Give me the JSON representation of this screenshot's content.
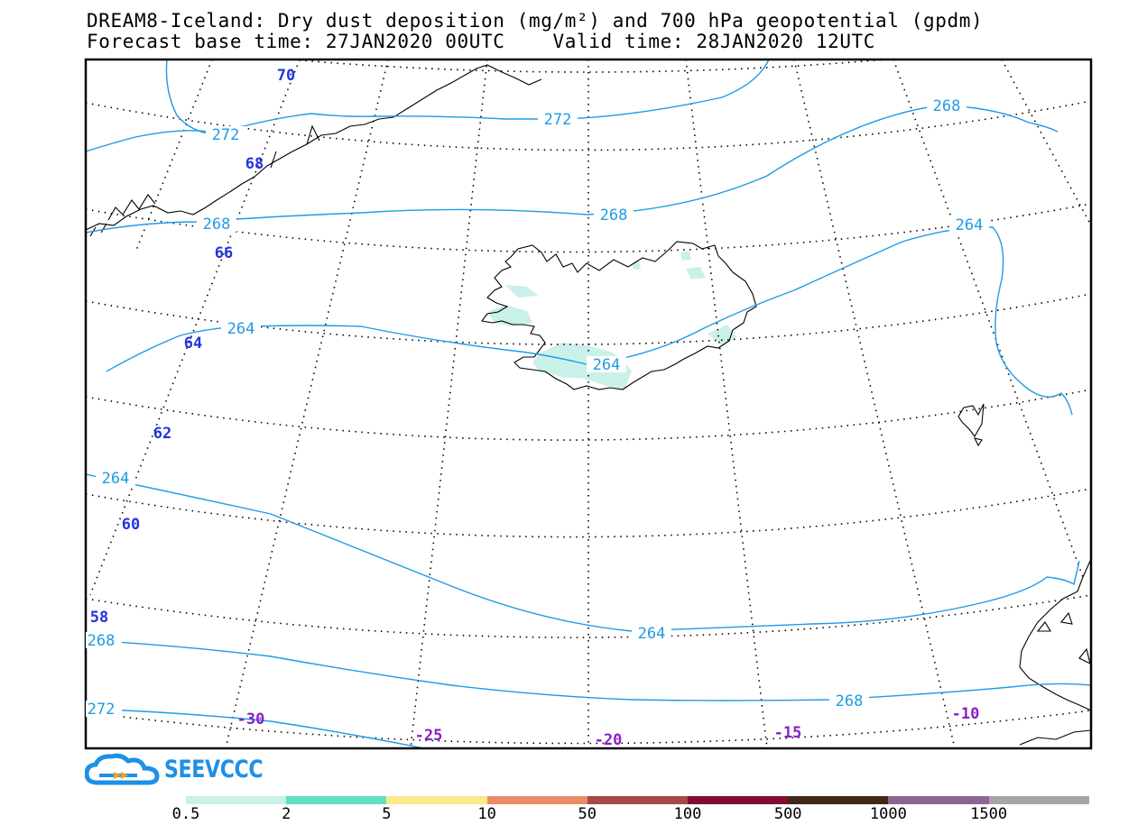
{
  "title": {
    "line1": "DREAM8-Iceland: Dry dust deposition (mg/m²) and 700 hPa geopotential (gpdm)",
    "line2": "Forecast base time: 27JAN2020 00UTC    Valid time: 28JAN2020 12UTC"
  },
  "logo": {
    "text": "SEEVCCC",
    "icon": "cloud-arrow-icon"
  },
  "colors": {
    "contour": "#1e9be6",
    "lat_label": "#2233dd",
    "lon_label": "#8a1ec8",
    "dust": "#c9f1ea"
  },
  "map": {
    "contour_labels": [
      {
        "id": "c272a",
        "text": "272"
      },
      {
        "id": "c272b",
        "text": "272"
      },
      {
        "id": "c268a",
        "text": "268"
      },
      {
        "id": "c268b",
        "text": "268"
      },
      {
        "id": "c268c",
        "text": "268"
      },
      {
        "id": "c264a",
        "text": "264"
      },
      {
        "id": "c264b",
        "text": "264"
      },
      {
        "id": "c264c",
        "text": "264"
      },
      {
        "id": "c264d",
        "text": "264"
      },
      {
        "id": "c264e",
        "text": "264"
      },
      {
        "id": "c268d",
        "text": "268"
      },
      {
        "id": "c268e",
        "text": "268"
      },
      {
        "id": "c272c",
        "text": "272"
      }
    ],
    "lat_labels": [
      "70",
      "68",
      "66",
      "64",
      "62",
      "60",
      "58"
    ],
    "lon_labels": [
      "-30",
      "-25",
      "-20",
      "-15",
      "-10"
    ]
  },
  "colorbar": {
    "colors": [
      "#c9f1ea",
      "#5ee0c2",
      "#fbe98a",
      "#e88c68",
      "#a84848",
      "#820c32",
      "#3f2818",
      "#8e6496",
      "#a6a6a6"
    ],
    "labels": [
      "0.5",
      "2",
      "5",
      "10",
      "50",
      "100",
      "500",
      "1000",
      "1500"
    ]
  }
}
